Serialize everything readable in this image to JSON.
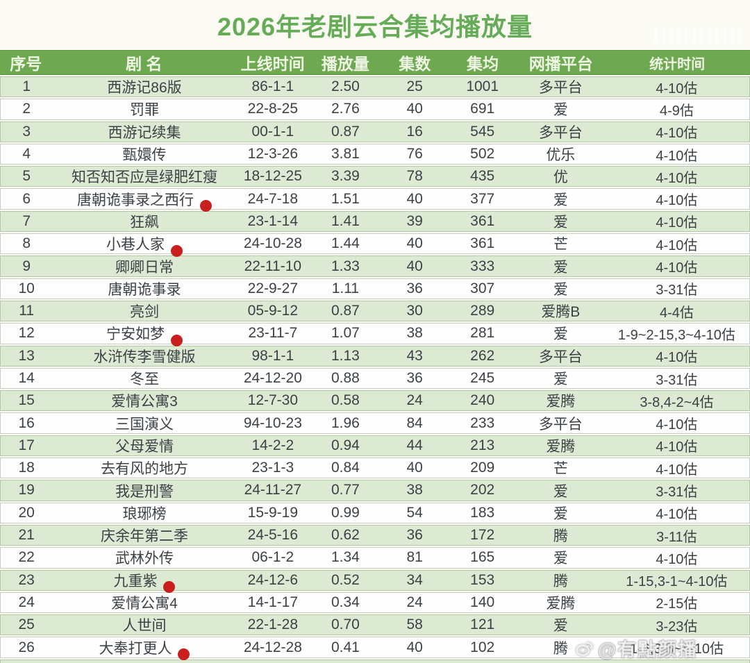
{
  "title": "2026年老剧云合集均播放量",
  "chart_data": {
    "type": "table",
    "title": "2026年老剧云合集均播放量",
    "columns": [
      "序号",
      "剧  名",
      "上线时间",
      "播放量",
      "集数",
      "集均",
      "网播平台",
      "统计时间"
    ],
    "rows": [
      {
        "no": "1",
        "name": "西游记86版",
        "dot": false,
        "date": "86-1-1",
        "plays": "2.50",
        "eps": "25",
        "avg": "1001",
        "platform": "多平台",
        "period": "4-10估"
      },
      {
        "no": "2",
        "name": "罚罪",
        "dot": false,
        "date": "22-8-25",
        "plays": "2.76",
        "eps": "40",
        "avg": "691",
        "platform": "爱",
        "period": "4-9估"
      },
      {
        "no": "3",
        "name": "西游记续集",
        "dot": false,
        "date": "00-1-1",
        "plays": "0.87",
        "eps": "16",
        "avg": "545",
        "platform": "多平台",
        "period": "4-10估"
      },
      {
        "no": "4",
        "name": "甄嬛传",
        "dot": false,
        "date": "12-3-26",
        "plays": "3.81",
        "eps": "76",
        "avg": "502",
        "platform": "优乐",
        "period": "4-10估"
      },
      {
        "no": "5",
        "name": "知否知否应是绿肥红瘦",
        "dot": false,
        "date": "18-12-25",
        "plays": "3.39",
        "eps": "78",
        "avg": "435",
        "platform": "优",
        "period": "4-10估"
      },
      {
        "no": "6",
        "name": "唐朝诡事录之西行",
        "dot": true,
        "date": "24-7-18",
        "plays": "1.51",
        "eps": "40",
        "avg": "377",
        "platform": "爱",
        "period": "4-10估"
      },
      {
        "no": "7",
        "name": "狂飙",
        "dot": false,
        "date": "23-1-14",
        "plays": "1.41",
        "eps": "39",
        "avg": "361",
        "platform": "爱",
        "period": "4-10估"
      },
      {
        "no": "8",
        "name": "小巷人家",
        "dot": true,
        "date": "24-10-28",
        "plays": "1.44",
        "eps": "40",
        "avg": "361",
        "platform": "芒",
        "period": "4-10估"
      },
      {
        "no": "9",
        "name": "卿卿日常",
        "dot": false,
        "date": "22-11-10",
        "plays": "1.33",
        "eps": "40",
        "avg": "333",
        "platform": "爱",
        "period": "4-10估"
      },
      {
        "no": "10",
        "name": "唐朝诡事录",
        "dot": false,
        "date": "22-9-27",
        "plays": "1.11",
        "eps": "36",
        "avg": "307",
        "platform": "爱",
        "period": "3-31估"
      },
      {
        "no": "11",
        "name": "亮剑",
        "dot": false,
        "date": "05-9-12",
        "plays": "0.87",
        "eps": "30",
        "avg": "289",
        "platform": "爱腾B",
        "period": "4-4估"
      },
      {
        "no": "12",
        "name": "宁安如梦",
        "dot": true,
        "date": "23-11-7",
        "plays": "1.07",
        "eps": "38",
        "avg": "281",
        "platform": "爱",
        "period": "1-9~2-15,3~4-10估"
      },
      {
        "no": "13",
        "name": "水浒传李雪健版",
        "dot": false,
        "date": "98-1-1",
        "plays": "1.13",
        "eps": "43",
        "avg": "262",
        "platform": "多平台",
        "period": "4-10估"
      },
      {
        "no": "14",
        "name": "冬至",
        "dot": false,
        "date": "24-12-20",
        "plays": "0.88",
        "eps": "36",
        "avg": "245",
        "platform": "爱",
        "period": "3-31估"
      },
      {
        "no": "15",
        "name": "爱情公寓3",
        "dot": false,
        "date": "12-7-30",
        "plays": "0.58",
        "eps": "24",
        "avg": "240",
        "platform": "爱腾",
        "period": "3-8,4-2~4估"
      },
      {
        "no": "16",
        "name": "三国演义",
        "dot": false,
        "date": "94-10-23",
        "plays": "1.96",
        "eps": "84",
        "avg": "233",
        "platform": "多平台",
        "period": "4-10估"
      },
      {
        "no": "17",
        "name": "父母爱情",
        "dot": false,
        "date": "14-2-2",
        "plays": "0.94",
        "eps": "44",
        "avg": "213",
        "platform": "爱腾",
        "period": "4-10估"
      },
      {
        "no": "18",
        "name": "去有风的地方",
        "dot": false,
        "date": "23-1-3",
        "plays": "0.84",
        "eps": "40",
        "avg": "209",
        "platform": "芒",
        "period": "4-10估"
      },
      {
        "no": "19",
        "name": "我是刑警",
        "dot": false,
        "date": "24-11-27",
        "plays": "0.77",
        "eps": "38",
        "avg": "202",
        "platform": "爱",
        "period": "3-31估"
      },
      {
        "no": "20",
        "name": "琅琊榜",
        "dot": false,
        "date": "15-9-19",
        "plays": "0.99",
        "eps": "54",
        "avg": "183",
        "platform": "爱",
        "period": "4-10估"
      },
      {
        "no": "21",
        "name": "庆余年第二季",
        "dot": false,
        "date": "24-5-16",
        "plays": "0.62",
        "eps": "36",
        "avg": "172",
        "platform": "腾",
        "period": "3-11估"
      },
      {
        "no": "22",
        "name": "武林外传",
        "dot": false,
        "date": "06-1-2",
        "plays": "1.34",
        "eps": "81",
        "avg": "165",
        "platform": "爱",
        "period": "4-10估"
      },
      {
        "no": "23",
        "name": "九重紫",
        "dot": true,
        "date": "24-12-6",
        "plays": "0.52",
        "eps": "34",
        "avg": "153",
        "platform": "腾",
        "period": "1-15,3-1~4-10估"
      },
      {
        "no": "24",
        "name": "爱情公寓4",
        "dot": false,
        "date": "14-1-17",
        "plays": "0.34",
        "eps": "24",
        "avg": "140",
        "platform": "爱腾",
        "period": "2-15估"
      },
      {
        "no": "25",
        "name": "人世间",
        "dot": false,
        "date": "22-1-28",
        "plays": "0.70",
        "eps": "58",
        "avg": "121",
        "platform": "爱",
        "period": "3-23估"
      },
      {
        "no": "26",
        "name": "大奉打更人",
        "dot": true,
        "date": "24-12-28",
        "plays": "0.41",
        "eps": "40",
        "avg": "102",
        "platform": "腾",
        "period": "1-6,3-5~4-10估",
        "watermark": true
      }
    ]
  },
  "watermark": {
    "icon": "weibo-icon",
    "text": "@有點颜播"
  },
  "colors": {
    "title_green": "#66ac58",
    "header_bg": "#6ea850",
    "row_green": "#dcead3",
    "row_white": "#fefefe",
    "cell_text": "#3c4146",
    "marker_red": "#c9201d"
  }
}
